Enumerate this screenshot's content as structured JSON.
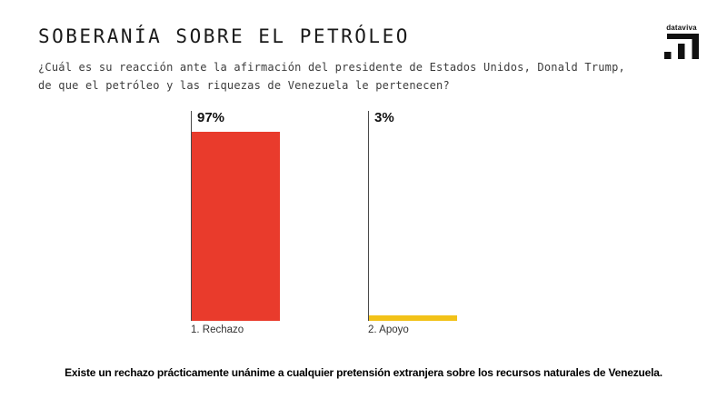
{
  "header": {
    "title": "SOBERANÍA SOBRE EL PETRÓLEO",
    "subtitle_line1": "¿Cuál es su reacción ante la afirmación del presidente de Estados Unidos, Donald Trump,",
    "subtitle_line2": "de que el petróleo y las riquezas de Venezuela le pertenecen?"
  },
  "logo": {
    "text": "dataviva",
    "icon": "stepped-bars-logo-icon",
    "color": "#111111"
  },
  "chart_data": {
    "type": "bar",
    "categories": [
      "1. Rechazo",
      "2. Apoyo"
    ],
    "values": [
      97,
      3
    ],
    "value_labels": [
      "97%",
      "3%"
    ],
    "colors": [
      "#E93B2C",
      "#F2C218"
    ],
    "ylim": [
      0,
      100
    ],
    "title": "SOBERANÍA SOBRE EL PETRÓLEO",
    "xlabel": "",
    "ylabel": "",
    "grid": false,
    "legend": false,
    "orientation": "vertical",
    "axis_line_color": "#4a4a4a"
  },
  "footer": {
    "note": "Existe un rechazo prácticamente unánime a cualquier pretensión extranjera sobre los recursos naturales de Venezuela."
  }
}
